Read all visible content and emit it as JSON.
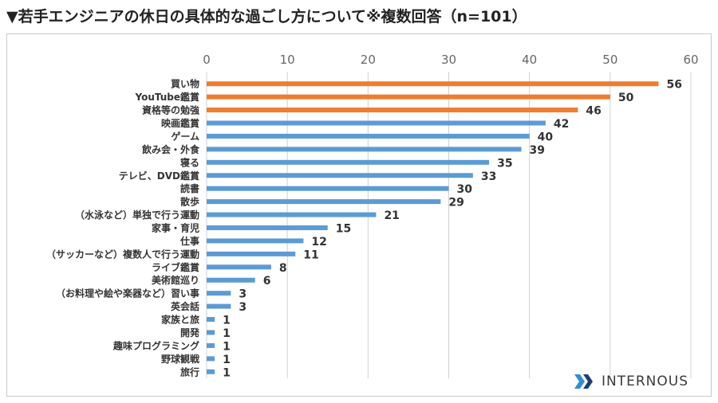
{
  "title": "▼若手エンジニアの休日の具体的な過ごし方について※複数回答（n=101）",
  "logo_text": "INTERNOUS",
  "colors": {
    "highlight": "#ed7d31",
    "normal": "#5b9bd5",
    "grid": "#d0d0d0",
    "label": "#333333"
  },
  "chart_data": {
    "type": "bar",
    "orientation": "horizontal",
    "categories": [
      "買い物",
      "YouTube鑑賞",
      "資格等の勉強",
      "映画鑑賞",
      "ゲーム",
      "飲み会・外食",
      "寝る",
      "テレビ、DVD鑑賞",
      "読書",
      "散歩",
      "（水泳など）単独で行う運動",
      "家事・育児",
      "仕事",
      "（サッカーなど）複数人で行う運動",
      "ライブ鑑賞",
      "美術館巡り",
      "（お料理や絵や楽器など）習い事",
      "英会話",
      "家族と旅",
      "開発",
      "趣味プログラミング",
      "野球観戦",
      "旅行"
    ],
    "values": [
      56,
      50,
      46,
      42,
      40,
      39,
      35,
      33,
      30,
      29,
      21,
      15,
      12,
      11,
      8,
      6,
      3,
      3,
      1,
      1,
      1,
      1,
      1
    ],
    "highlighted_count": 3,
    "xlim": [
      0,
      60
    ],
    "xticks": [
      "0",
      "10",
      "20",
      "30",
      "40",
      "50",
      "60"
    ],
    "grid": "vertical",
    "axis_position": "top",
    "data_labels": true
  }
}
